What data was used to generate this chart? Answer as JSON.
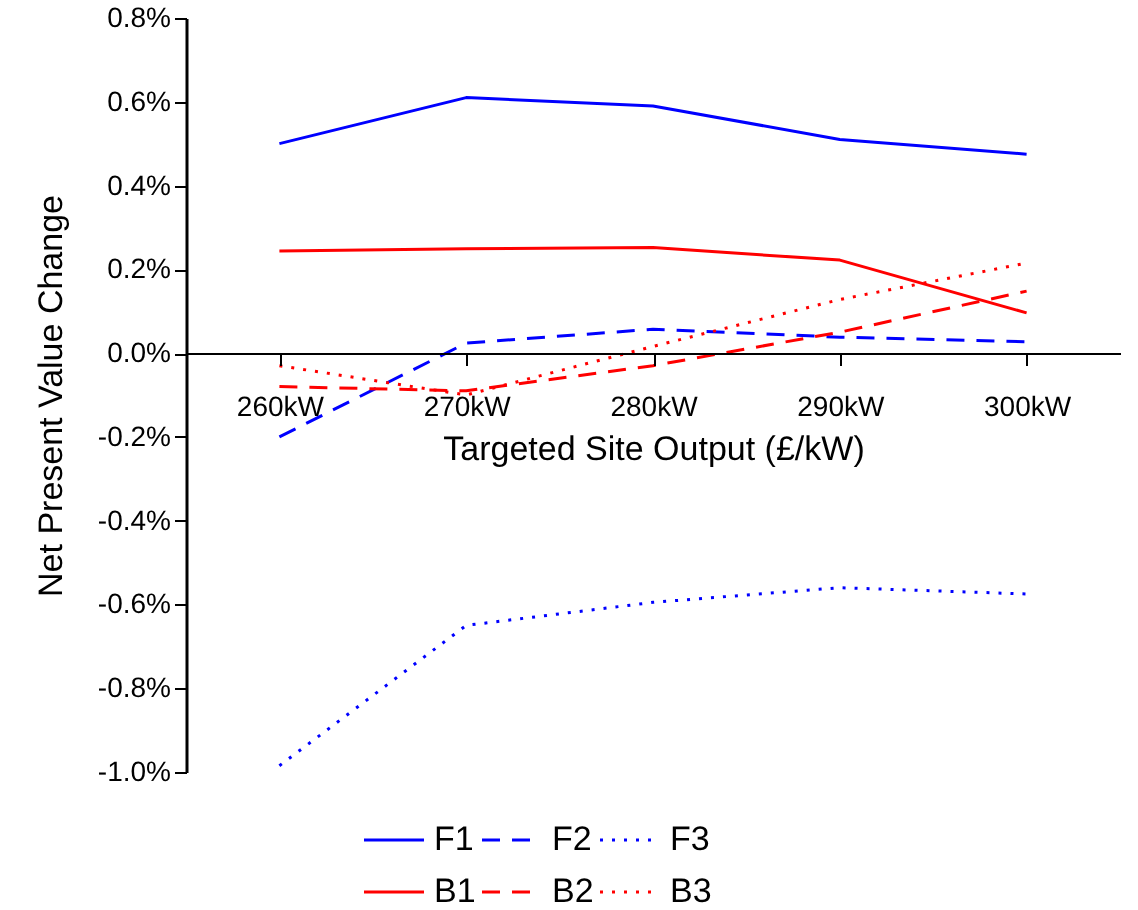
{
  "chart_data": {
    "type": "line",
    "xlabel": "Targeted Site Output (£/kW)",
    "ylabel": "Net Present Value Change",
    "categories": [
      "260kW",
      "270kW",
      "280kW",
      "290kW",
      "300kW"
    ],
    "series": [
      {
        "name": "F1",
        "color": "#0000ff",
        "line_style": "solid",
        "values": [
          0.5,
          0.61,
          0.59,
          0.51,
          0.475
        ]
      },
      {
        "name": "F2",
        "color": "#0000ff",
        "line_style": "dashed",
        "values": [
          -0.2,
          0.024,
          0.057,
          0.038,
          0.027
        ]
      },
      {
        "name": "F3",
        "color": "#0000ff",
        "line_style": "dotted",
        "values": [
          -0.985,
          -0.65,
          -0.595,
          -0.56,
          -0.575
        ]
      },
      {
        "name": "B1",
        "color": "#ff0000",
        "line_style": "solid",
        "values": [
          0.244,
          0.249,
          0.252,
          0.222,
          0.096
        ]
      },
      {
        "name": "B2",
        "color": "#ff0000",
        "line_style": "dashed",
        "values": [
          -0.08,
          -0.09,
          -0.03,
          0.05,
          0.148
        ]
      },
      {
        "name": "B3",
        "color": "#ff0000",
        "line_style": "dotted",
        "values": [
          -0.03,
          -0.1,
          0.016,
          0.128,
          0.215
        ]
      }
    ],
    "ylim": [
      -1.0,
      0.8
    ],
    "yticks": [
      {
        "value": -1.0,
        "label": "-1.0%"
      },
      {
        "value": -0.8,
        "label": "-0.8%"
      },
      {
        "value": -0.6,
        "label": "-0.6%"
      },
      {
        "value": -0.4,
        "label": "-0.4%"
      },
      {
        "value": -0.2,
        "label": "-0.2%"
      },
      {
        "value": 0,
        "label": "0.0%"
      },
      {
        "value": 0.2,
        "label": "0.2%"
      },
      {
        "value": 0.4,
        "label": "0.4%"
      },
      {
        "value": 0.6,
        "label": "0.6%"
      },
      {
        "value": 0.8,
        "label": "0.8%"
      }
    ],
    "legend": "bottom",
    "grid": false,
    "marker": "none"
  }
}
